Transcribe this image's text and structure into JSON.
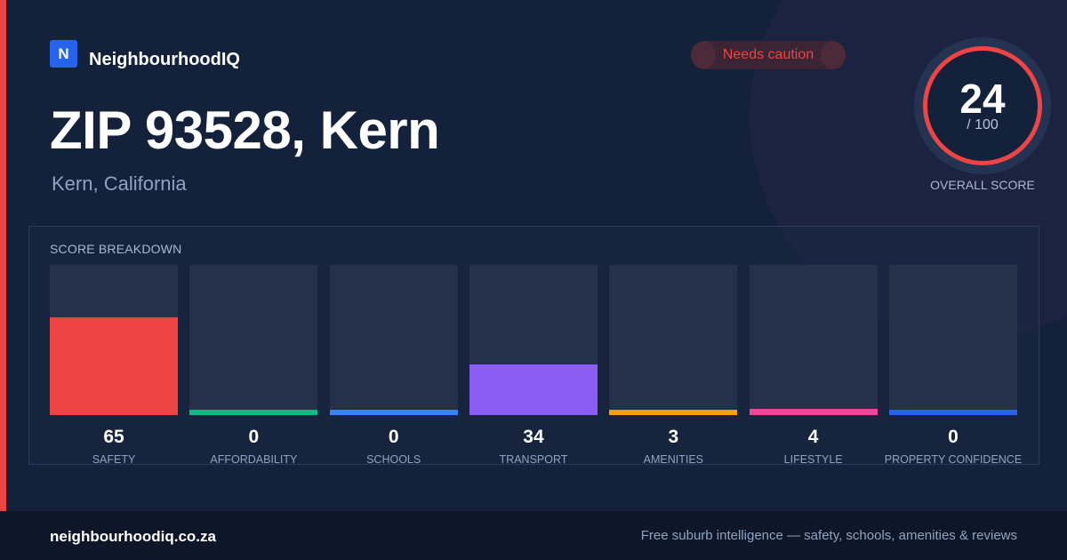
{
  "brand": {
    "logo_letter": "N",
    "name": "NeighbourhoodIQ",
    "logo_color": "#2563eb"
  },
  "status": {
    "label": "Needs caution",
    "color": "#ef4444"
  },
  "location": {
    "title": "ZIP 93528, Kern",
    "subtitle": "Kern, California"
  },
  "overall": {
    "score": "24",
    "max": "/ 100",
    "label": "OVERALL SCORE",
    "ring_color": "#ef4444"
  },
  "breakdown": {
    "title": "SCORE BREAKDOWN",
    "items": [
      {
        "value": "65",
        "label": "SAFETY",
        "score": 65,
        "color": "#ef4444"
      },
      {
        "value": "0",
        "label": "AFFORDABILITY",
        "score": 0,
        "color": "#10b981"
      },
      {
        "value": "0",
        "label": "SCHOOLS",
        "score": 0,
        "color": "#3b82f6"
      },
      {
        "value": "34",
        "label": "TRANSPORT",
        "score": 34,
        "color": "#8b5cf6"
      },
      {
        "value": "3",
        "label": "AMENITIES",
        "score": 3,
        "color": "#f59e0b"
      },
      {
        "value": "4",
        "label": "LIFESTYLE",
        "score": 4,
        "color": "#ec4899"
      },
      {
        "value": "0",
        "label": "PROPERTY CONFIDENCE",
        "score": 0,
        "color": "#2563eb"
      }
    ]
  },
  "footer": {
    "url": "neighbourhoodiq.co.za",
    "tagline": "Free suburb intelligence — safety, schools, amenities & reviews"
  }
}
